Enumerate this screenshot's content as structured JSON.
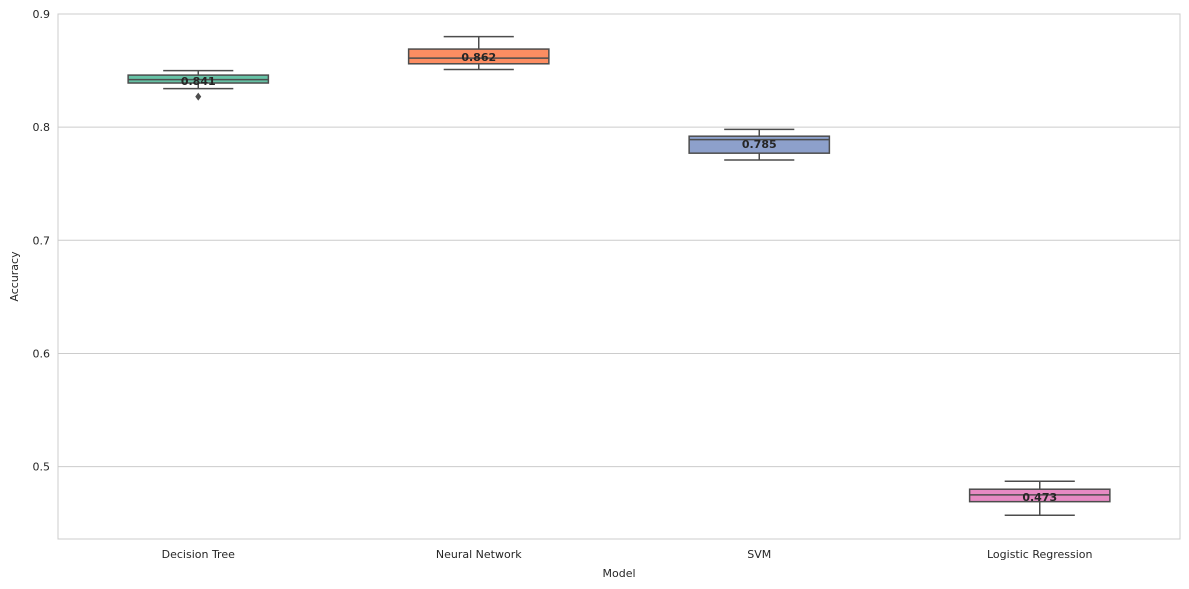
{
  "chart_data": {
    "type": "box",
    "xlabel": "Model",
    "ylabel": "Accuracy",
    "ylim": [
      0.436,
      0.9
    ],
    "yticks": [
      "0.5",
      "0.6",
      "0.7",
      "0.8",
      "0.9"
    ],
    "grid": "y",
    "categories": [
      "Decision Tree",
      "Neural Network",
      "SVM",
      "Logistic Regression"
    ],
    "boxes": [
      {
        "name": "Decision Tree",
        "whisker_low": 0.834,
        "q1": 0.839,
        "median": 0.842,
        "q3": 0.846,
        "whisker_high": 0.85,
        "outliers": [
          0.827
        ],
        "mean_label": "0.841",
        "mean": 0.841,
        "color": "#66c2a5"
      },
      {
        "name": "Neural Network",
        "whisker_low": 0.851,
        "q1": 0.856,
        "median": 0.861,
        "q3": 0.869,
        "whisker_high": 0.88,
        "outliers": [],
        "mean_label": "0.862",
        "mean": 0.862,
        "color": "#fc8d62"
      },
      {
        "name": "SVM",
        "whisker_low": 0.771,
        "q1": 0.777,
        "median": 0.789,
        "q3": 0.792,
        "whisker_high": 0.798,
        "outliers": [],
        "mean_label": "0.785",
        "mean": 0.785,
        "color": "#8da0cb"
      },
      {
        "name": "Logistic Regression",
        "whisker_low": 0.457,
        "q1": 0.469,
        "median": 0.475,
        "q3": 0.48,
        "whisker_high": 0.487,
        "outliers": [],
        "mean_label": "0.473",
        "mean": 0.473,
        "color": "#e78ac3"
      }
    ]
  }
}
